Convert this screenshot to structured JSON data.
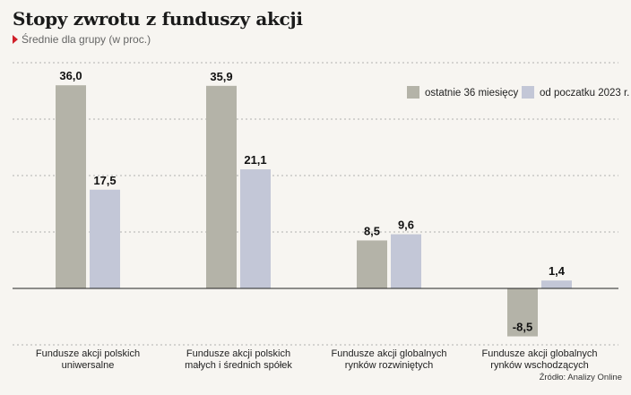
{
  "header": {
    "title": "Stopy zwrotu z funduszy akcji",
    "subtitle": "Średnie dla grupy (w proc.)"
  },
  "footer": {
    "source": "Źródło: Analizy Online"
  },
  "colors": {
    "series_1": "#b4b3a8",
    "series_2": "#c3c7d7",
    "accent": "#d0202a"
  },
  "chart_data": {
    "type": "bar",
    "categories": [
      [
        "Fundusze akcji polskich",
        "uniwersalne"
      ],
      [
        "Fundusze akcji polskich",
        "małych i średnich spółek"
      ],
      [
        "Fundusze akcji globalnych",
        "rynków rozwiniętych"
      ],
      [
        "Fundusze akcji globalnych",
        "rynków wschodzących"
      ]
    ],
    "series": [
      {
        "name": "ostatnie 36 miesięcy",
        "values": [
          36.0,
          35.9,
          8.5,
          -8.5
        ],
        "labels": [
          "36,0",
          "35,9",
          "8,5",
          "-8,5"
        ]
      },
      {
        "name": "od poczatku 2023 r.",
        "values": [
          17.5,
          21.1,
          9.6,
          1.4
        ],
        "labels": [
          "17,5",
          "21,1",
          "9,6",
          "1,4"
        ]
      }
    ],
    "ylim": [
      -10,
      40
    ],
    "grid": true,
    "legend_position": "top-right"
  }
}
